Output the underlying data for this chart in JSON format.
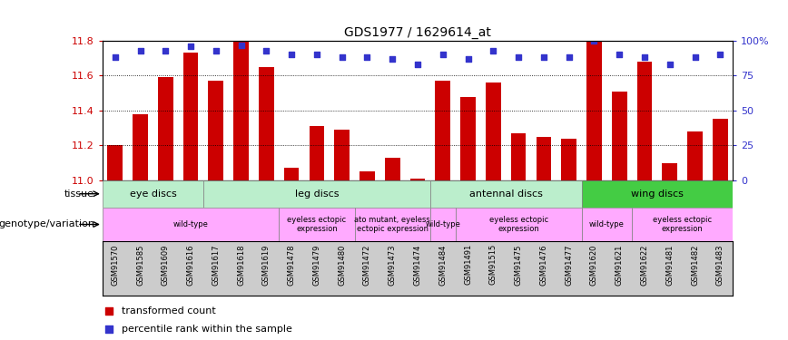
{
  "title": "GDS1977 / 1629614_at",
  "samples": [
    "GSM91570",
    "GSM91585",
    "GSM91609",
    "GSM91616",
    "GSM91617",
    "GSM91618",
    "GSM91619",
    "GSM91478",
    "GSM91479",
    "GSM91480",
    "GSM91472",
    "GSM91473",
    "GSM91474",
    "GSM91484",
    "GSM91491",
    "GSM91515",
    "GSM91475",
    "GSM91476",
    "GSM91477",
    "GSM91620",
    "GSM91621",
    "GSM91622",
    "GSM91481",
    "GSM91482",
    "GSM91483"
  ],
  "bar_values": [
    11.2,
    11.38,
    11.59,
    11.73,
    11.57,
    11.8,
    11.65,
    11.07,
    11.31,
    11.29,
    11.05,
    11.13,
    11.01,
    11.57,
    11.48,
    11.56,
    11.27,
    11.25,
    11.24,
    11.8,
    11.51,
    11.68,
    11.1,
    11.28,
    11.35
  ],
  "percentile_values": [
    88,
    93,
    93,
    96,
    93,
    97,
    93,
    90,
    90,
    88,
    88,
    87,
    83,
    90,
    87,
    93,
    88,
    88,
    88,
    100,
    90,
    88,
    83,
    88,
    90
  ],
  "ylim": [
    11.0,
    11.8
  ],
  "yticks": [
    11.0,
    11.2,
    11.4,
    11.6,
    11.8
  ],
  "right_ylim": [
    0,
    100
  ],
  "right_yticks": [
    0,
    25,
    50,
    75,
    100
  ],
  "bar_color": "#cc0000",
  "dot_color": "#3333cc",
  "bar_width": 0.6,
  "tissue_groups": [
    {
      "label": "eye discs",
      "start": 0,
      "end": 3,
      "color": "#bbeecc"
    },
    {
      "label": "leg discs",
      "start": 4,
      "end": 12,
      "color": "#bbeecc"
    },
    {
      "label": "antennal discs",
      "start": 13,
      "end": 18,
      "color": "#bbeecc"
    },
    {
      "label": "wing discs",
      "start": 19,
      "end": 24,
      "color": "#44cc44"
    }
  ],
  "geno_groups": [
    {
      "label": "wild-type",
      "start": 0,
      "end": 6,
      "color": "#ffaaff"
    },
    {
      "label": "eyeless ectopic\nexpression",
      "start": 7,
      "end": 9,
      "color": "#ffaaff"
    },
    {
      "label": "ato mutant, eyeless\nectopic expression",
      "start": 10,
      "end": 12,
      "color": "#ffaaff"
    },
    {
      "label": "wild-type",
      "start": 13,
      "end": 13,
      "color": "#ffaaff"
    },
    {
      "label": "eyeless ectopic\nexpression",
      "start": 14,
      "end": 18,
      "color": "#ffaaff"
    },
    {
      "label": "wild-type",
      "start": 19,
      "end": 20,
      "color": "#ffaaff"
    },
    {
      "label": "eyeless ectopic\nexpression",
      "start": 21,
      "end": 24,
      "color": "#ffaaff"
    }
  ],
  "tick_label_color": "#cc0000",
  "right_tick_color": "#3333cc",
  "grid_lines": [
    11.2,
    11.4,
    11.6
  ],
  "xticklabel_bg": "#cccccc"
}
